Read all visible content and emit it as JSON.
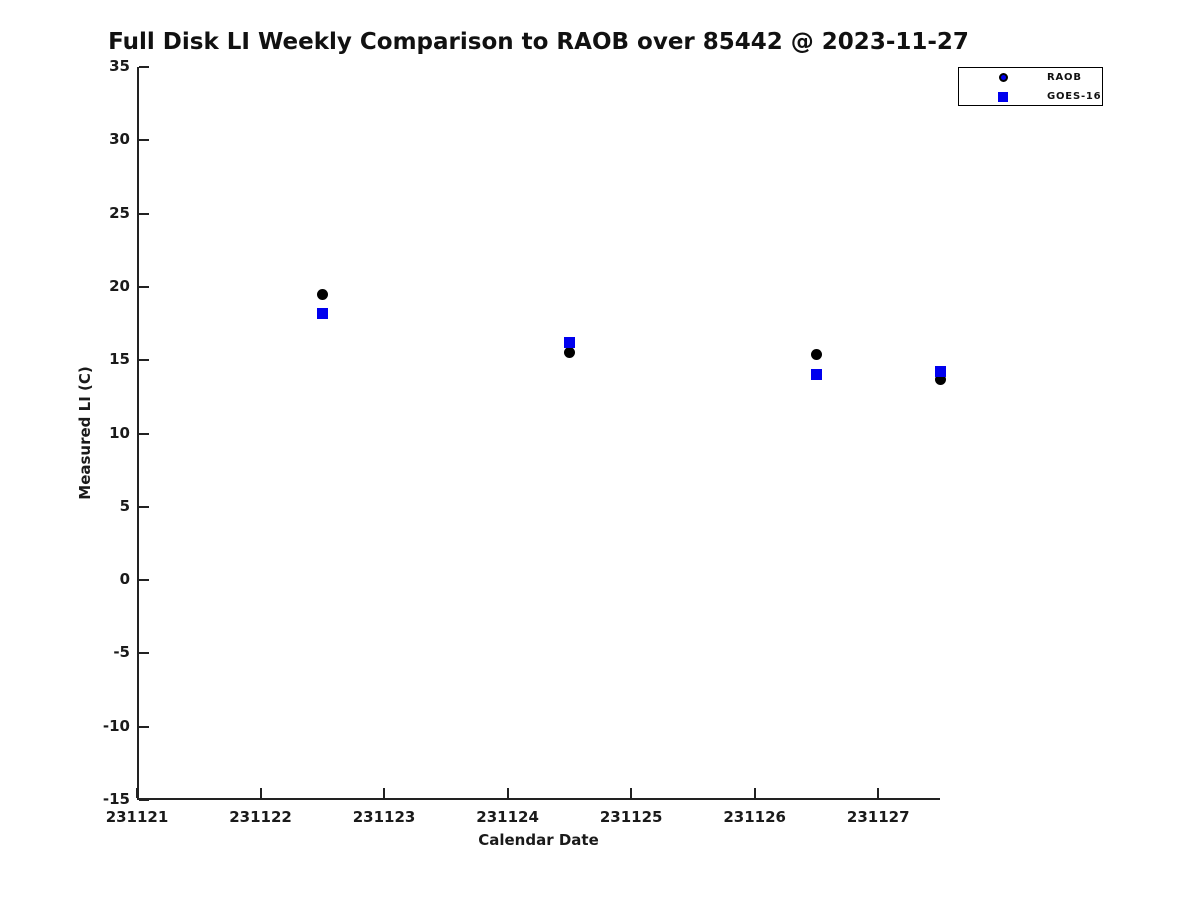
{
  "title": "Full Disk LI Weekly Comparison to RAOB over 85442 @ 2023-11-27",
  "axes": {
    "xlabel": "Calendar Date",
    "ylabel": "Measured LI (C)"
  },
  "legend": {
    "items": [
      {
        "label": "RAOB",
        "marker": "circle"
      },
      {
        "label": "GOES-16",
        "marker": "square"
      }
    ]
  },
  "colors": {
    "raob_plot_fill": "#000000",
    "raob_legend_fill": "#0000ee",
    "raob_legend_edge": "#000000",
    "goes_fill": "#0000ee",
    "spine": "#222222",
    "background": "#ffffff"
  },
  "chart_data": {
    "type": "scatter",
    "title": "Full Disk LI Weekly Comparison to RAOB over 85442 @ 2023-11-27",
    "xlabel": "Calendar Date",
    "ylabel": "Measured LI (C)",
    "x": [
      231122.5,
      231124.5,
      231126.5,
      231127.5
    ],
    "series": [
      {
        "name": "RAOB",
        "marker": "circle",
        "color": "#000000",
        "values": [
          19.5,
          15.5,
          15.4,
          13.7
        ]
      },
      {
        "name": "GOES-16",
        "marker": "square",
        "color": "#0000ee",
        "values": [
          18.2,
          16.2,
          14.0,
          14.2
        ]
      }
    ],
    "xlim": [
      231121,
      231127.5
    ],
    "ylim": [
      -15,
      35
    ],
    "xticks": [
      231121,
      231122,
      231123,
      231124,
      231125,
      231126,
      231127
    ],
    "yticks": [
      35,
      30,
      25,
      20,
      15,
      10,
      5,
      0,
      -5,
      -10,
      -15
    ],
    "grid": false,
    "legend_position": "outside-top-right"
  }
}
